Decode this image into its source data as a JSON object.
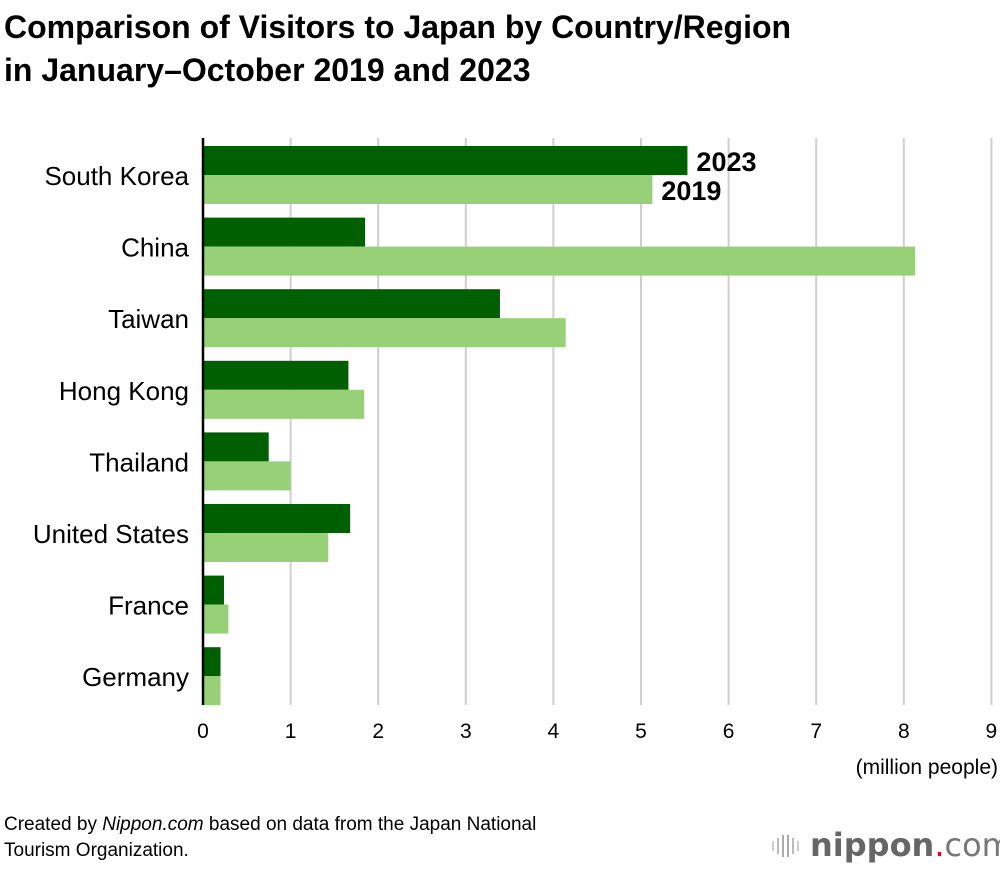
{
  "title_lines": [
    "Comparison of Visitors to Japan by Country/Region",
    "in January–October 2019 and 2023"
  ],
  "footer": {
    "prefix": "Created by ",
    "source": "Nippon.com",
    "suffix": " based on data from the Japan National",
    "line2": "Tourism Organization."
  },
  "logo": {
    "name": "nippon",
    "dot": ".",
    "tld": "com"
  },
  "chart_data": {
    "type": "bar",
    "orientation": "horizontal",
    "title": "Comparison of Visitors to Japan by Country/Region in January–October 2019 and 2023",
    "categories": [
      "South Korea",
      "China",
      "Taiwan",
      "Hong Kong",
      "Thailand",
      "United States",
      "France",
      "Germany"
    ],
    "series": [
      {
        "name": "2023",
        "color": "#005f00",
        "values": [
          5.53,
          1.85,
          3.39,
          1.66,
          0.75,
          1.68,
          0.24,
          0.2
        ]
      },
      {
        "name": "2019",
        "color": "#97d077",
        "values": [
          5.13,
          8.13,
          4.14,
          1.84,
          1.0,
          1.43,
          0.29,
          0.2
        ]
      }
    ],
    "xlabel": "(million people)",
    "xlim": [
      0,
      9
    ],
    "xticks": [
      "0",
      "1",
      "2",
      "3",
      "4",
      "5",
      "6",
      "7",
      "8",
      "9"
    ],
    "grid": true,
    "legend": "inline labels on first category"
  }
}
